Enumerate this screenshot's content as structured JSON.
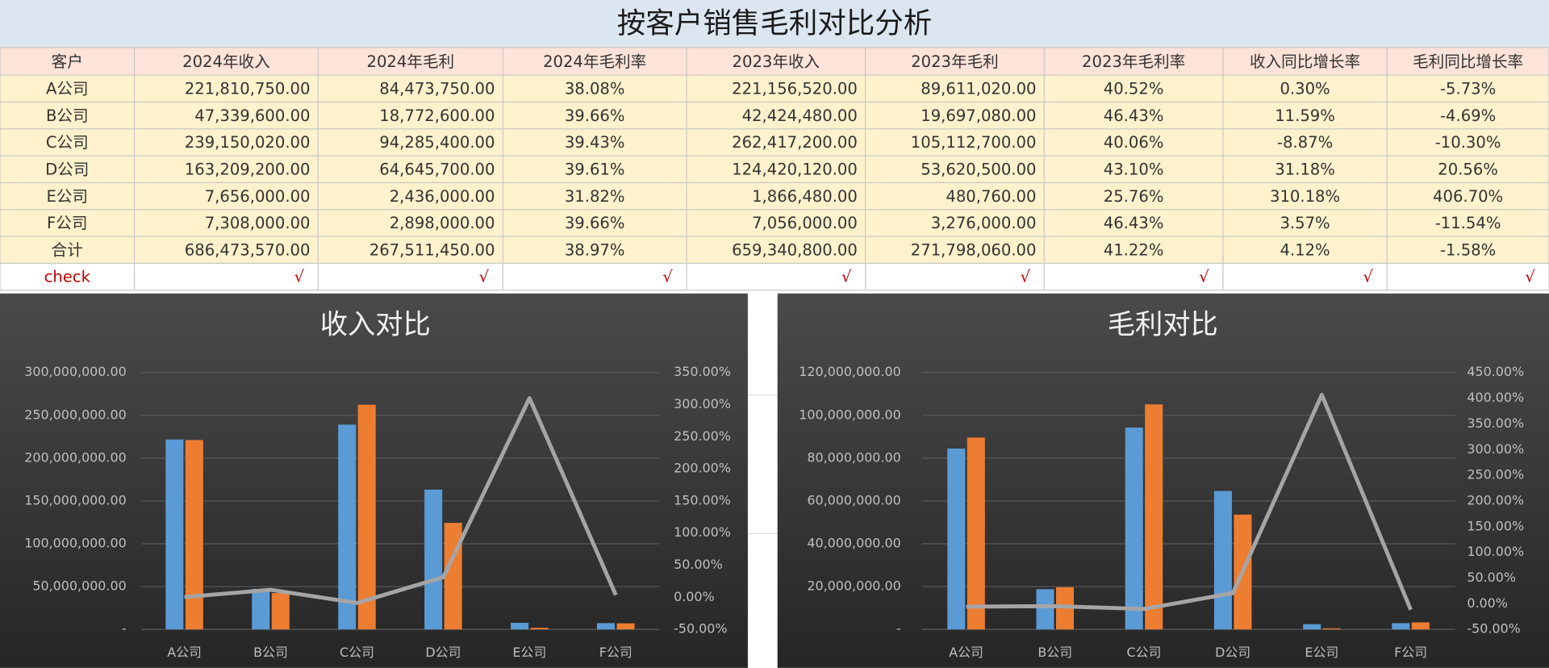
{
  "table": {
    "title": "按客户销售毛利对比分析",
    "columns": [
      "客户",
      "2024年收入",
      "2024年毛利",
      "2024年毛利率",
      "2023年收入",
      "2023年毛利",
      "2023年毛利率",
      "收入同比增长率",
      "毛利同比增长率"
    ],
    "rows": [
      [
        "A公司",
        "221,810,750.00",
        "84,473,750.00",
        "38.08%",
        "221,156,520.00",
        "89,611,020.00",
        "40.52%",
        "0.30%",
        "-5.73%"
      ],
      [
        "B公司",
        "47,339,600.00",
        "18,772,600.00",
        "39.66%",
        "42,424,480.00",
        "19,697,080.00",
        "46.43%",
        "11.59%",
        "-4.69%"
      ],
      [
        "C公司",
        "239,150,020.00",
        "94,285,400.00",
        "39.43%",
        "262,417,200.00",
        "105,112,700.00",
        "40.06%",
        "-8.87%",
        "-10.30%"
      ],
      [
        "D公司",
        "163,209,200.00",
        "64,645,700.00",
        "39.61%",
        "124,420,120.00",
        "53,620,500.00",
        "43.10%",
        "31.18%",
        "20.56%"
      ],
      [
        "E公司",
        "7,656,000.00",
        "2,436,000.00",
        "31.82%",
        "1,866,480.00",
        "480,760.00",
        "25.76%",
        "310.18%",
        "406.70%"
      ],
      [
        "F公司",
        "7,308,000.00",
        "2,898,000.00",
        "39.66%",
        "7,056,000.00",
        "3,276,000.00",
        "46.43%",
        "3.57%",
        "-11.54%"
      ],
      [
        "合计",
        "686,473,570.00",
        "267,511,450.00",
        "38.97%",
        "659,340,800.00",
        "271,798,060.00",
        "41.22%",
        "4.12%",
        "-1.58%"
      ]
    ],
    "check_row": [
      "check",
      "√",
      "√",
      "√",
      "√",
      "√",
      "√",
      "√",
      "√"
    ]
  },
  "chart_data": [
    {
      "type": "bar",
      "title": "收入对比",
      "categories": [
        "A公司",
        "B公司",
        "C公司",
        "D公司",
        "E公司",
        "F公司"
      ],
      "series": [
        {
          "color": "#5b9bd5",
          "values": [
            221810750,
            47339600,
            239150020,
            163209200,
            7656000,
            7308000
          ]
        },
        {
          "color": "#ed7d31",
          "values": [
            221156520,
            42424480,
            262417200,
            124420120,
            1866480,
            7056000
          ]
        },
        {
          "type": "line",
          "axis": "y2",
          "color": "#a5a5a5",
          "values": [
            0.3,
            11.59,
            -8.87,
            31.18,
            310.18,
            3.57
          ]
        }
      ],
      "ylim": [
        0,
        300000000
      ],
      "yticks": [
        {
          "value": 0,
          "label": "-"
        },
        {
          "value": 50000000,
          "label": "50,000,000.00"
        },
        {
          "value": 100000000,
          "label": "100,000,000.00"
        },
        {
          "value": 150000000,
          "label": "150,000,000.00"
        },
        {
          "value": 200000000,
          "label": "200,000,000.00"
        },
        {
          "value": 250000000,
          "label": "250,000,000.00"
        },
        {
          "value": 300000000,
          "label": "300,000,000.00"
        }
      ],
      "y2lim": [
        -50,
        350
      ],
      "y2ticks": [
        {
          "value": -50,
          "label": "-50.00%"
        },
        {
          "value": 0,
          "label": "0.00%"
        },
        {
          "value": 50,
          "label": "50.00%"
        },
        {
          "value": 100,
          "label": "100.00%"
        },
        {
          "value": 150,
          "label": "150.00%"
        },
        {
          "value": 200,
          "label": "200.00%"
        },
        {
          "value": 250,
          "label": "250.00%"
        },
        {
          "value": 300,
          "label": "300.00%"
        },
        {
          "value": 350,
          "label": "350.00%"
        }
      ],
      "grid": true
    },
    {
      "type": "bar",
      "title": "毛利对比",
      "categories": [
        "A公司",
        "B公司",
        "C公司",
        "D公司",
        "E公司",
        "F公司"
      ],
      "series": [
        {
          "color": "#5b9bd5",
          "values": [
            84473750,
            18772600,
            94285400,
            64645700,
            2436000,
            2898000
          ]
        },
        {
          "color": "#ed7d31",
          "values": [
            89611020,
            19697080,
            105112700,
            53620500,
            480760,
            3276000
          ]
        },
        {
          "type": "line",
          "axis": "y2",
          "color": "#a5a5a5",
          "values": [
            -5.73,
            -4.69,
            -10.3,
            20.56,
            406.7,
            -11.54
          ]
        }
      ],
      "ylim": [
        0,
        120000000
      ],
      "yticks": [
        {
          "value": 0,
          "label": "-"
        },
        {
          "value": 20000000,
          "label": "20,000,000.00"
        },
        {
          "value": 40000000,
          "label": "40,000,000.00"
        },
        {
          "value": 60000000,
          "label": "60,000,000.00"
        },
        {
          "value": 80000000,
          "label": "80,000,000.00"
        },
        {
          "value": 100000000,
          "label": "100,000,000.00"
        },
        {
          "value": 120000000,
          "label": "120,000,000.00"
        }
      ],
      "y2lim": [
        -50,
        450
      ],
      "y2ticks": [
        {
          "value": -50,
          "label": "-50.00%"
        },
        {
          "value": 0,
          "label": "0.00%"
        },
        {
          "value": 50,
          "label": "50.00%"
        },
        {
          "value": 100,
          "label": "100.00%"
        },
        {
          "value": 150,
          "label": "150.00%"
        },
        {
          "value": 200,
          "label": "200.00%"
        },
        {
          "value": 250,
          "label": "250.00%"
        },
        {
          "value": 300,
          "label": "300.00%"
        },
        {
          "value": 350,
          "label": "350.00%"
        },
        {
          "value": 400,
          "label": "400.00%"
        },
        {
          "value": 450,
          "label": "450.00%"
        }
      ],
      "grid": true
    }
  ]
}
